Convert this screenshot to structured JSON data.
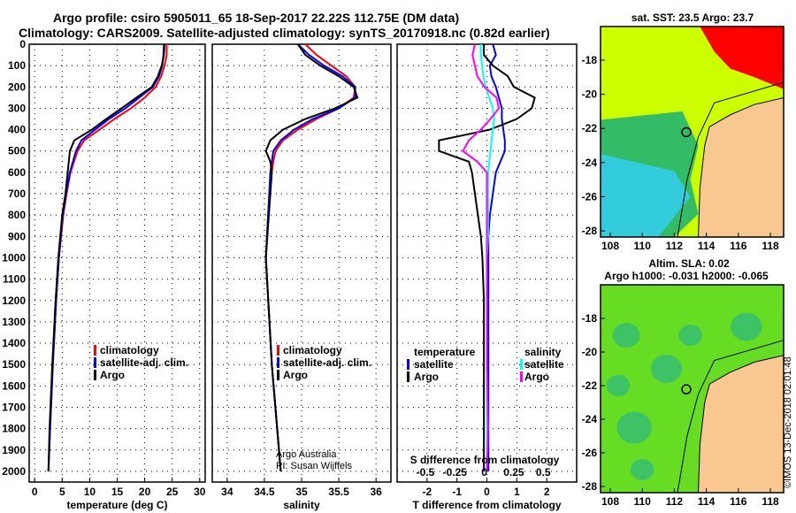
{
  "title_line1": "Argo profile: csiro 5905011_65 18-Sep-2017 22.22S 112.75E (DM data)",
  "title_line2": "Climatology: CARS2009. Satellite-adjusted climatology: synTS_20170918.nc (0.82d earlier)",
  "copyright": "©IMOS 13-Dec-2018 02:01:48",
  "colors": {
    "climatology": "#ff0000",
    "satellite": "#0000ff",
    "argo": "#000000",
    "sal_sat": "#00ffff",
    "sal_argo": "#ff00ff",
    "land": "#f8c890"
  },
  "chart_data": [
    {
      "type": "line",
      "xlabel": "temperature (deg C)",
      "xlim": [
        -1,
        31
      ],
      "xticks": [
        0,
        5,
        10,
        15,
        20,
        25,
        30
      ],
      "ylim": [
        2050,
        0
      ],
      "yticks": [
        0,
        100,
        200,
        300,
        400,
        500,
        600,
        700,
        800,
        900,
        1000,
        1100,
        1200,
        1300,
        1400,
        1500,
        1600,
        1700,
        1800,
        1900,
        2000
      ],
      "legend": [
        "climatology",
        "satellite-adj. clim.",
        "Argo"
      ],
      "depth": [
        0,
        50,
        100,
        150,
        200,
        250,
        300,
        350,
        400,
        450,
        500,
        600,
        700,
        800,
        1000,
        1200,
        1500,
        1800,
        2000
      ],
      "series": [
        {
          "name": "climatology",
          "values": [
            24,
            24,
            23.6,
            23,
            22,
            20,
            17.5,
            14.5,
            11.8,
            9,
            7.8,
            6.5,
            5.8,
            5.2,
            4.4,
            3.9,
            3.3,
            2.8,
            2.5
          ]
        },
        {
          "name": "satellite-adj. clim.",
          "values": [
            23.5,
            23.4,
            23.2,
            22.6,
            21.5,
            19,
            16.5,
            13.5,
            11,
            8.5,
            7.5,
            6.4,
            5.7,
            5.1,
            4.4,
            3.9,
            3.3,
            2.8,
            2.5
          ]
        },
        {
          "name": "Argo",
          "values": [
            23.6,
            23.5,
            23.1,
            22.4,
            21.3,
            18.5,
            15.8,
            13,
            10.4,
            7.2,
            6.4,
            6,
            5.6,
            5,
            4.3,
            3.8,
            3.2,
            2.7,
            2.5
          ]
        }
      ]
    },
    {
      "type": "line",
      "xlabel": "salinity",
      "xlim": [
        33.8,
        36.2
      ],
      "xticks": [
        34,
        34.5,
        35,
        35.5,
        36
      ],
      "ylim": [
        2050,
        0
      ],
      "legend": [
        "climatology",
        "satellite-adj. clim.",
        "Argo"
      ],
      "annotation": [
        "Argo Australia",
        "PI: Susan Wijffels"
      ],
      "depth": [
        0,
        50,
        100,
        150,
        200,
        250,
        300,
        350,
        400,
        450,
        500,
        550,
        600,
        800,
        1000,
        1500,
        2000
      ],
      "series": [
        {
          "name": "climatology",
          "values": [
            35.05,
            35.2,
            35.4,
            35.6,
            35.72,
            35.7,
            35.5,
            35.2,
            34.95,
            34.75,
            34.65,
            34.62,
            34.6,
            34.55,
            34.52,
            34.6,
            34.72
          ]
        },
        {
          "name": "satellite-adj. clim.",
          "values": [
            34.95,
            35.1,
            35.3,
            35.55,
            35.72,
            35.72,
            35.5,
            35.15,
            34.9,
            34.72,
            34.62,
            34.6,
            34.58,
            34.55,
            34.52,
            34.6,
            34.72
          ]
        },
        {
          "name": "Argo",
          "values": [
            34.95,
            35.05,
            35.25,
            35.5,
            35.7,
            35.75,
            35.45,
            35.05,
            34.75,
            34.58,
            34.52,
            34.58,
            34.6,
            34.56,
            34.52,
            34.6,
            34.72
          ]
        }
      ]
    },
    {
      "type": "line",
      "xlabel": "T difference from climatology",
      "x2label": "S difference from climatology",
      "xlim": [
        -3,
        3
      ],
      "xticks": [
        -2,
        -1,
        0,
        1,
        2
      ],
      "x2ticks": [
        "-0.5",
        "-0.25",
        "0",
        "0.25",
        "0.5"
      ],
      "ylim": [
        2050,
        0
      ],
      "legend_temperature": {
        "title": "temperature",
        "items": [
          "satellite",
          "Argo"
        ]
      },
      "legend_salinity": {
        "title": "salinity",
        "items": [
          "satellite",
          "Argo"
        ]
      },
      "depth": [
        0,
        50,
        100,
        150,
        200,
        250,
        300,
        350,
        400,
        450,
        500,
        550,
        600,
        700,
        800,
        900,
        1000,
        1200,
        1500,
        1800,
        2000
      ],
      "series": [
        {
          "name": "T satellite",
          "values": [
            0.2,
            0.3,
            0.1,
            0.15,
            0.3,
            0.4,
            0.5,
            0.5,
            0.55,
            0.6,
            0.6,
            0.45,
            0.3,
            0.2,
            0.1,
            0.05,
            0.05,
            0.05,
            0.05,
            0.05,
            0.05
          ]
        },
        {
          "name": "T Argo",
          "values": [
            -0.1,
            -0.1,
            0.2,
            0.7,
            0.9,
            1.6,
            1.5,
            1.0,
            0.1,
            -1.6,
            -1.6,
            -0.6,
            -0.5,
            -0.4,
            -0.3,
            -0.2,
            -0.15,
            -0.1,
            -0.1,
            -0.1,
            -0.1
          ]
        },
        {
          "name": "S satellite",
          "values": [
            -0.05,
            -0.05,
            -0.04,
            -0.03,
            -0.01,
            0.02,
            0.05,
            0.06,
            0.05,
            0.04,
            0.03,
            0.02,
            0.01,
            0.01,
            0.01,
            0.01,
            0.0,
            0.0,
            0.0,
            0.0,
            0.0
          ]
        },
        {
          "name": "S Argo",
          "values": [
            -0.1,
            -0.12,
            -0.1,
            -0.08,
            -0.02,
            0.08,
            0.1,
            0.03,
            -0.05,
            -0.15,
            -0.2,
            -0.08,
            0.0,
            0.0,
            0.0,
            0.0,
            0.0,
            0.0,
            0.0,
            0.01,
            0.0
          ]
        }
      ]
    },
    {
      "type": "heatmap",
      "title": "sat. SST: 23.5 Argo: 23.7",
      "xticks": [
        108,
        110,
        112,
        114,
        116,
        118
      ],
      "yticks": [
        -18,
        -20,
        -22,
        -24,
        -26,
        -28
      ],
      "marker": [
        112.75,
        -22.22
      ]
    },
    {
      "type": "heatmap",
      "title": "Altim. SLA: 0.02",
      "subtitle": "Argo h1000: -0.031 h2000: -0.065",
      "xticks": [
        108,
        110,
        112,
        114,
        116,
        118
      ],
      "yticks": [
        -18,
        -20,
        -22,
        -24,
        -26,
        -28
      ],
      "marker": [
        112.75,
        -22.22
      ]
    }
  ]
}
